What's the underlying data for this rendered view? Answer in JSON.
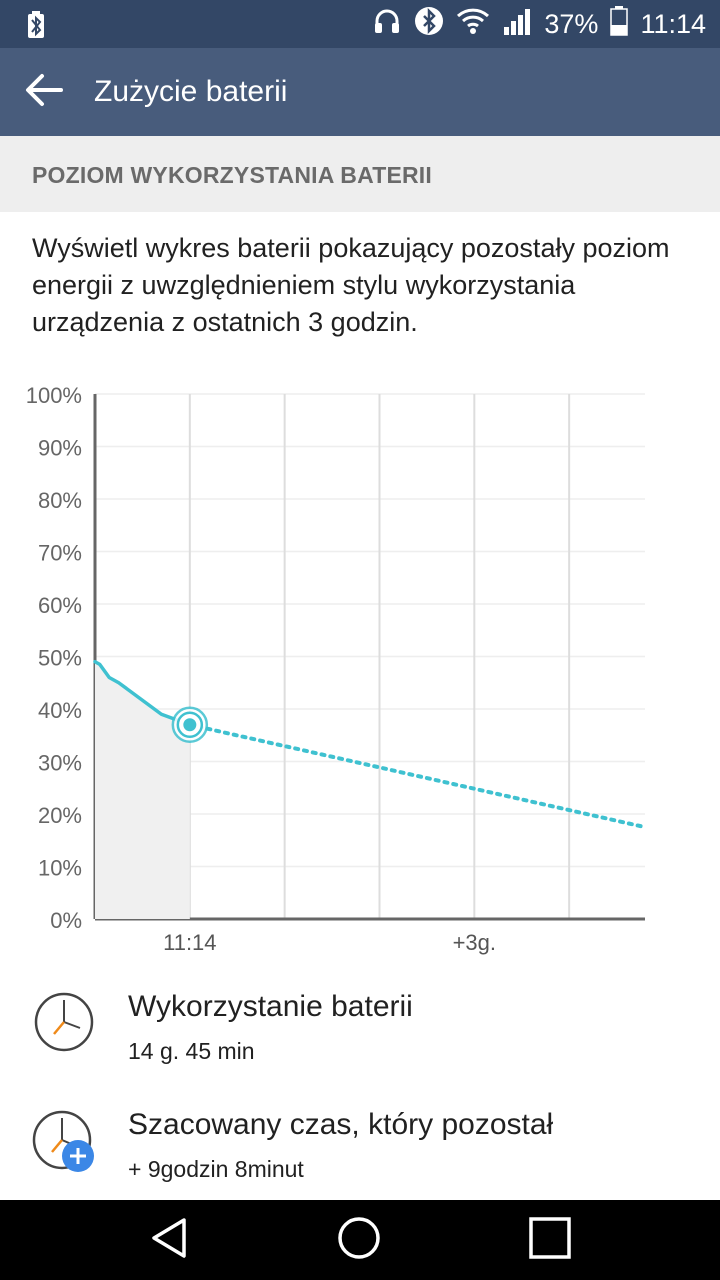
{
  "status_bar": {
    "battery_percent": "37%",
    "time": "11:14",
    "icons": [
      "bluetooth-battery-icon",
      "headphones-icon",
      "bluetooth-icon",
      "wifi-icon",
      "signal-icon",
      "battery-icon"
    ]
  },
  "app_bar": {
    "title": "Zużycie baterii",
    "back_icon": "arrow-back-icon"
  },
  "section": {
    "header": "POZIOM WYKORZYSTANIA BATERII",
    "description": "Wyświetl wykres baterii pokazujący pozostały poziom energii z uwzględnieniem stylu wykorzystania urządzenia z ostatnich 3 godzin."
  },
  "chart_data": {
    "type": "line",
    "title": "",
    "xlabel": "",
    "ylabel": "",
    "y_ticks": [
      "100%",
      "90%",
      "80%",
      "70%",
      "60%",
      "50%",
      "40%",
      "30%",
      "20%",
      "10%",
      "0%"
    ],
    "x_labels": [
      "11:14",
      "+3g."
    ],
    "ylim": [
      0,
      100
    ],
    "grid": true,
    "series": [
      {
        "style": "solid",
        "color": "#3fc1d0",
        "x": [
          -1.0,
          -0.95,
          -0.85,
          -0.75,
          -0.6,
          -0.45,
          -0.3,
          -0.15,
          0.0
        ],
        "values": [
          49,
          48.5,
          46,
          45,
          43,
          41,
          39,
          38,
          37
        ]
      },
      {
        "style": "dotted",
        "color": "#3fc1d0",
        "x": [
          0.0,
          4.8
        ],
        "values": [
          37,
          17.5
        ]
      }
    ],
    "current_point": {
      "x": 0.0,
      "value": 37
    }
  },
  "usage": {
    "title": "Wykorzystanie baterii",
    "value": "14 g. 45 min",
    "icon": "clock-icon"
  },
  "remaining": {
    "title": "Szacowany czas, który pozostał",
    "value": "+ 9godzin 8minut",
    "icon": "clock-plus-icon"
  },
  "nav": {
    "icons": [
      "back-triangle-icon",
      "home-circle-icon",
      "recents-square-icon"
    ]
  },
  "colors": {
    "status_bar": "#334766",
    "app_bar": "#485c7c",
    "accent": "#3fc1d0"
  }
}
